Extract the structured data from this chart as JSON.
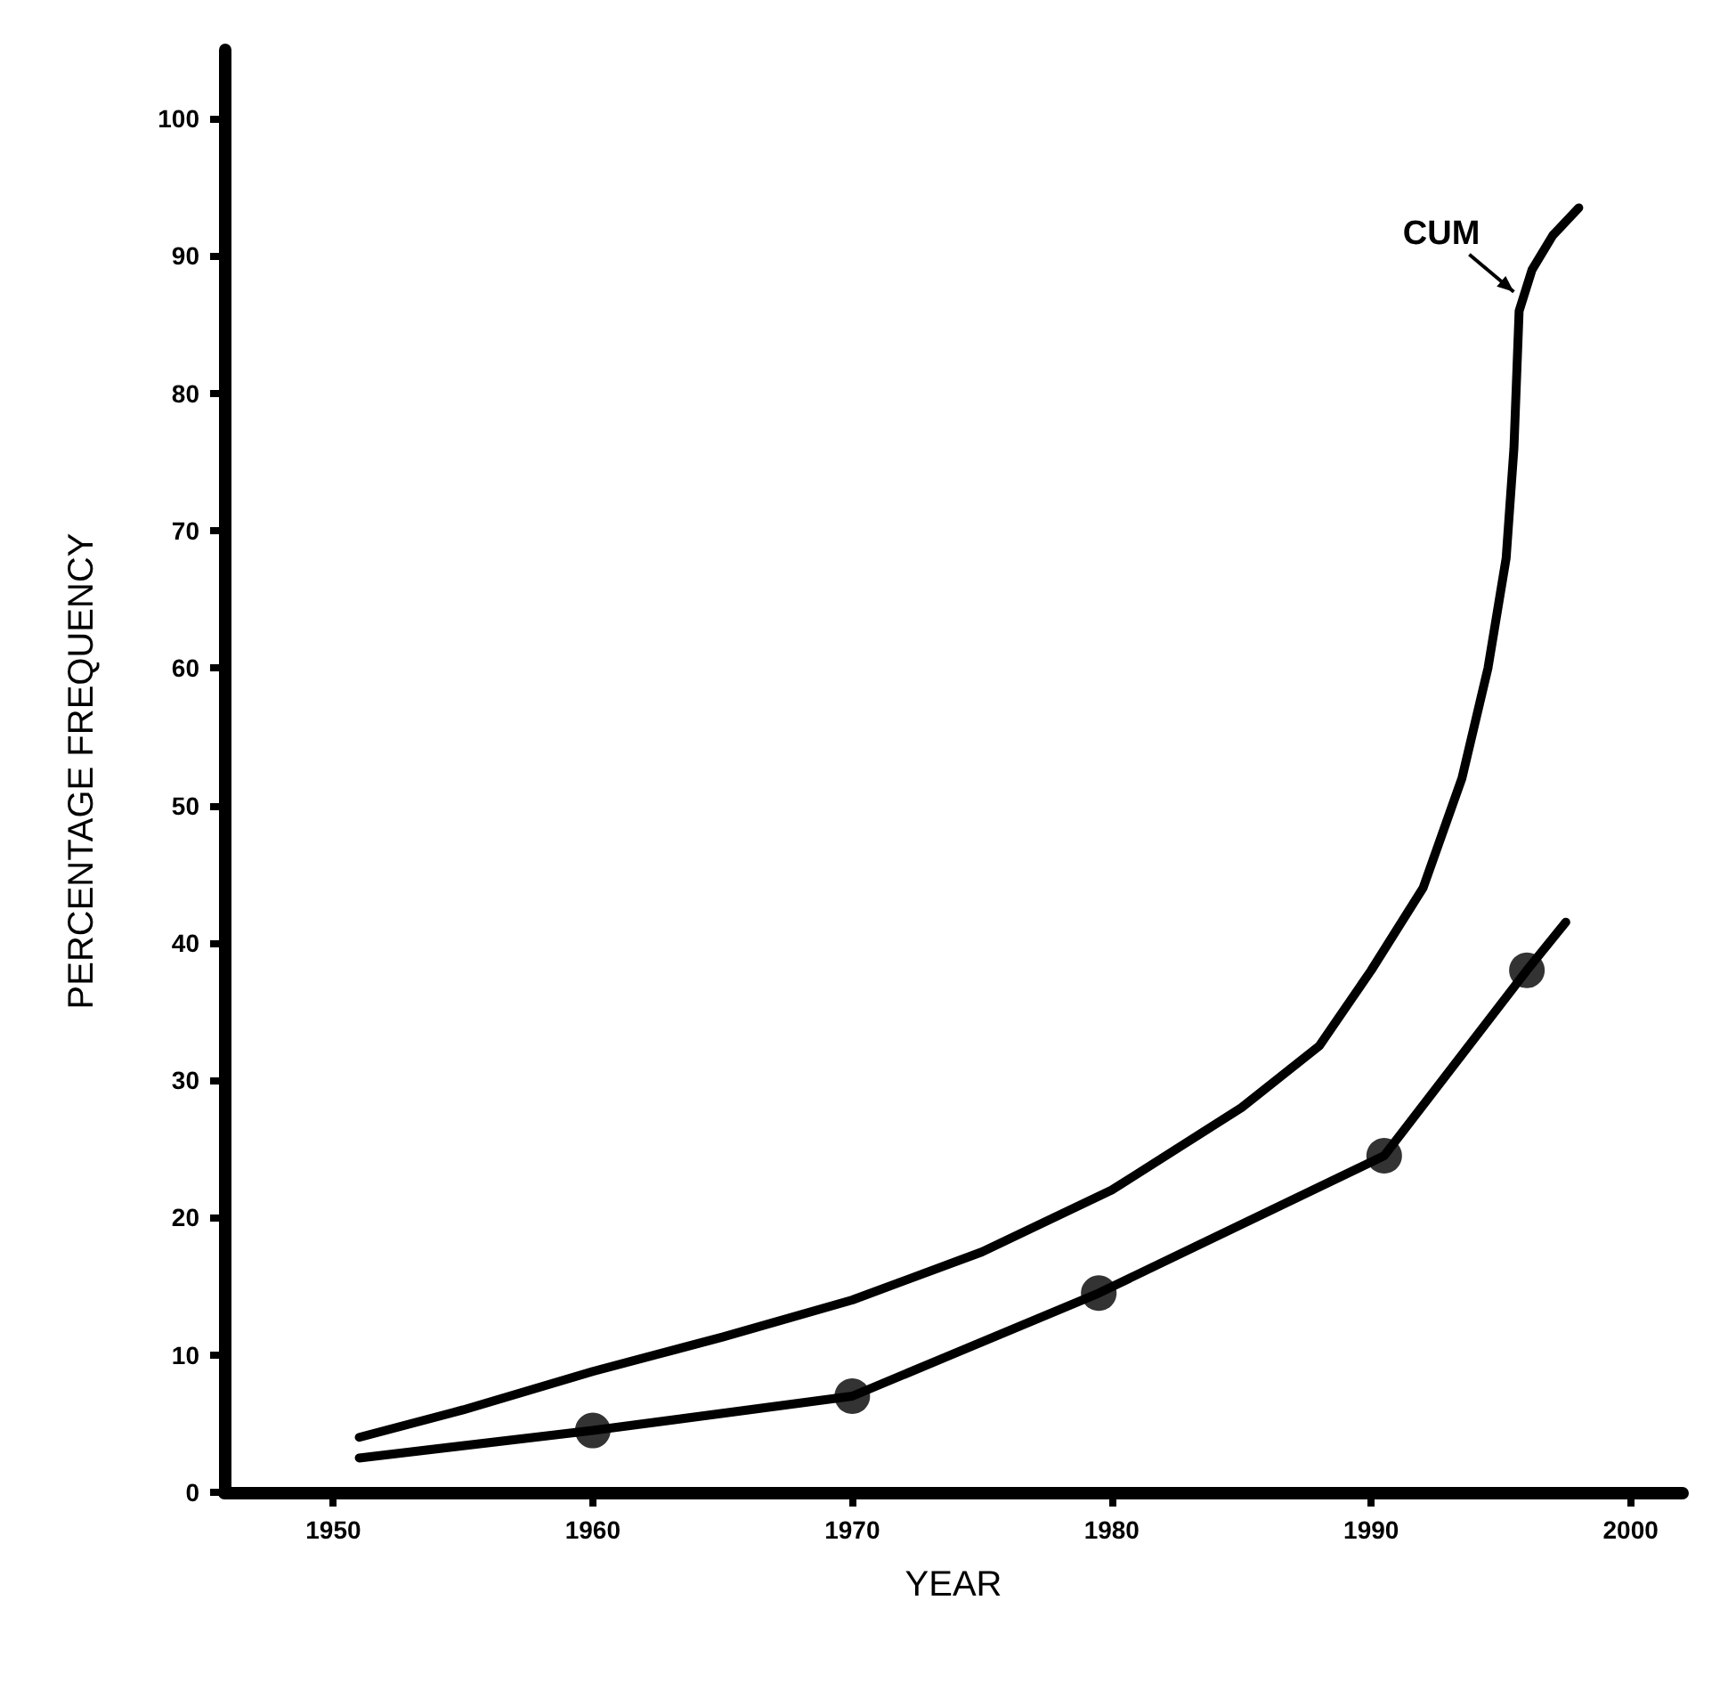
{
  "chart_data": {
    "type": "line",
    "xlabel": "YEAR",
    "ylabel": "PERCENTAGE FREQUENCY",
    "xlim": [
      1945.8,
      2002
    ],
    "xticks": [
      1950,
      1960,
      1970,
      1980,
      1990,
      2000
    ],
    "ylim": [
      0,
      105
    ],
    "yticks": [
      0,
      10,
      20,
      30,
      40,
      50,
      60,
      70,
      80,
      90,
      100
    ],
    "grid": false,
    "marker": "none",
    "line_style": "solid",
    "annotations": [
      {
        "text": "CUM",
        "x": 1995.7,
        "y": 87
      }
    ],
    "series": [
      {
        "color": "#000000",
        "x": [
          1951,
          1955,
          1960,
          1965,
          1970,
          1975,
          1980,
          1985,
          1988,
          1990,
          1992,
          1993.5,
          1994.5,
          1995.2,
          1995.5,
          1995.7,
          1996.2,
          1997,
          1998
        ],
        "values": [
          4,
          6,
          8.8,
          11.3,
          14,
          17.5,
          22,
          28,
          32.5,
          38,
          44,
          52,
          60,
          68,
          76,
          86,
          89,
          91.5,
          93.5
        ]
      },
      {
        "color": "#000000",
        "x": [
          1951,
          1960,
          1970,
          1979.5,
          1990.5,
          1996,
          1997.5
        ],
        "values": [
          2.5,
          4.5,
          7,
          14.5,
          24.5,
          38,
          41.5
        ]
      },
      {
        "type": "scatter",
        "marker": "circle",
        "color": "#000000",
        "x": [
          1960,
          1970,
          1979.5,
          1990.5,
          1996
        ],
        "values": [
          4.5,
          7,
          14.5,
          24.5,
          38
        ]
      }
    ]
  }
}
